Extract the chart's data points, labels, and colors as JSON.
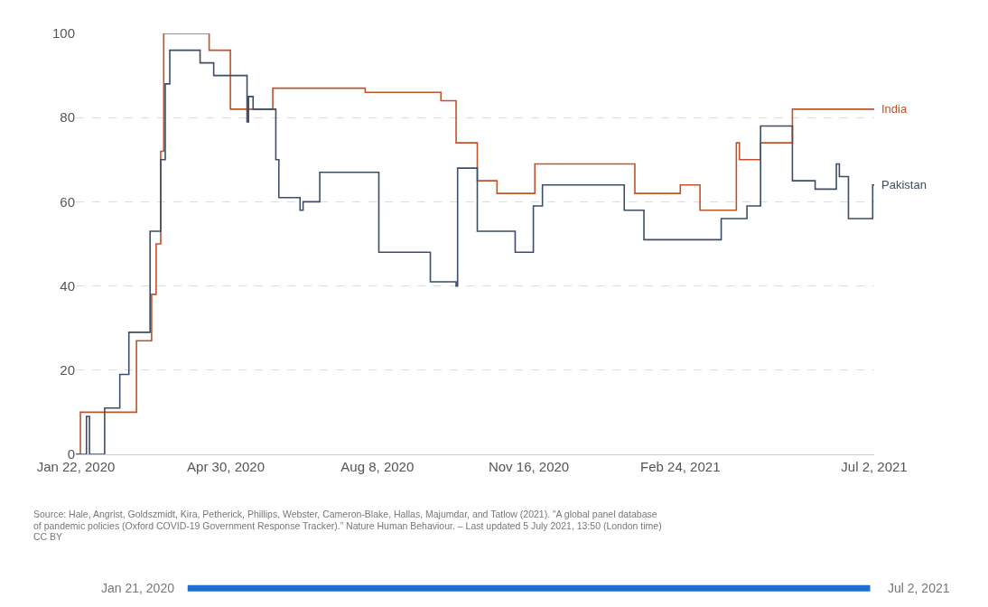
{
  "chart_data": {
    "type": "step",
    "xlim": [
      "2020-01-22",
      "2021-07-02"
    ],
    "xticks": [
      {
        "value": "2020-01-22",
        "label": "Jan 22, 2020"
      },
      {
        "value": "2020-04-30",
        "label": "Apr 30, 2020"
      },
      {
        "value": "2020-08-08",
        "label": "Aug 8, 2020"
      },
      {
        "value": "2020-11-16",
        "label": "Nov 16, 2020"
      },
      {
        "value": "2021-02-24",
        "label": "Feb 24, 2021"
      },
      {
        "value": "2021-07-02",
        "label": "Jul 2, 2021"
      }
    ],
    "ylim": [
      0,
      100
    ],
    "yticks": [
      0,
      20,
      40,
      60,
      80,
      100
    ],
    "grid": "y",
    "legend": false,
    "series": [
      {
        "name": "India",
        "color": "#c0532b",
        "x": [
          "2020-01-22",
          "2020-01-25",
          "2020-03-02",
          "2020-03-12",
          "2020-03-15",
          "2020-03-18",
          "2020-03-20",
          "2020-04-19",
          "2020-05-03",
          "2020-05-31",
          "2020-07-31",
          "2020-09-19",
          "2020-09-29",
          "2020-10-13",
          "2020-10-26",
          "2020-11-20",
          "2021-01-25",
          "2021-02-24",
          "2021-03-09",
          "2021-04-02",
          "2021-04-04",
          "2021-04-18",
          "2021-05-09",
          "2021-07-02"
        ],
        "values": [
          0,
          10,
          27,
          38,
          50,
          72,
          100,
          96,
          82,
          87,
          86,
          84,
          74,
          65,
          62,
          69,
          62,
          64,
          58,
          74,
          70,
          74,
          82,
          82
        ]
      },
      {
        "name": "Pakistan",
        "color": "#3c4e66",
        "x": [
          "2020-01-22",
          "2020-01-29",
          "2020-01-31",
          "2020-02-10",
          "2020-02-20",
          "2020-02-26",
          "2020-03-11",
          "2020-03-18",
          "2020-03-21",
          "2020-03-24",
          "2020-04-13",
          "2020-04-22",
          "2020-05-14",
          "2020-05-15",
          "2020-05-18",
          "2020-06-02",
          "2020-06-04",
          "2020-06-18",
          "2020-06-20",
          "2020-07-01",
          "2020-08-09",
          "2020-09-12",
          "2020-09-29",
          "2020-09-30",
          "2020-10-13",
          "2020-11-07",
          "2020-11-19",
          "2020-11-25",
          "2021-01-18",
          "2021-01-31",
          "2021-03-23",
          "2021-04-09",
          "2021-04-18",
          "2021-05-09",
          "2021-05-24",
          "2021-06-07",
          "2021-06-09",
          "2021-06-15",
          "2021-07-01",
          "2021-07-02"
        ],
        "values": [
          0,
          9,
          0,
          11,
          19,
          29,
          53,
          70,
          88,
          96,
          93,
          90,
          79,
          85,
          82,
          70,
          61,
          58,
          60,
          67,
          48,
          41,
          40,
          68,
          53,
          48,
          59,
          64,
          58,
          51,
          56,
          59,
          78,
          65,
          63,
          69,
          66,
          56,
          64,
          64
        ]
      }
    ],
    "annotations": [
      "Source: Hale, Angrist, Goldszmidt, Kira, Petherick, Phillips, Webster, Cameron-Blake, Hallas, Majumdar, and Tatlow (2021). “A global panel database",
      "of pandemic policies (Oxford COVID-19 Government Response Tracker).” Nature Human Behaviour. – Last updated 5 July 2021, 13:50 (London time)",
      "CC BY",
      "Jan 21, 2020",
      "Jul 2, 2021"
    ]
  }
}
